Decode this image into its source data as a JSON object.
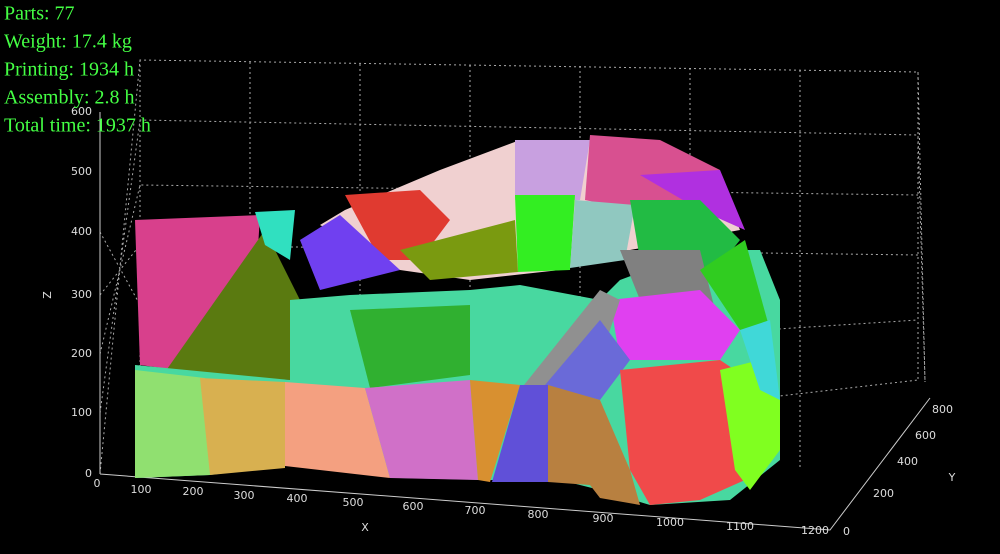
{
  "stats": [
    "Parts: 77",
    "Weight: 17.4 kg",
    "Printing: 1934 h",
    "Assembly: 2.8 h",
    "Total time: 1937 h"
  ],
  "axes": {
    "x": {
      "label": "X",
      "ticks": [
        0,
        100,
        200,
        300,
        400,
        500,
        600,
        700,
        800,
        900,
        1000,
        1100,
        1200
      ]
    },
    "y": {
      "label": "Y",
      "ticks": [
        0,
        200,
        400,
        600,
        800
      ]
    },
    "z": {
      "label": "Z",
      "ticks": [
        0,
        100,
        200,
        300,
        400,
        500,
        600
      ]
    }
  }
}
